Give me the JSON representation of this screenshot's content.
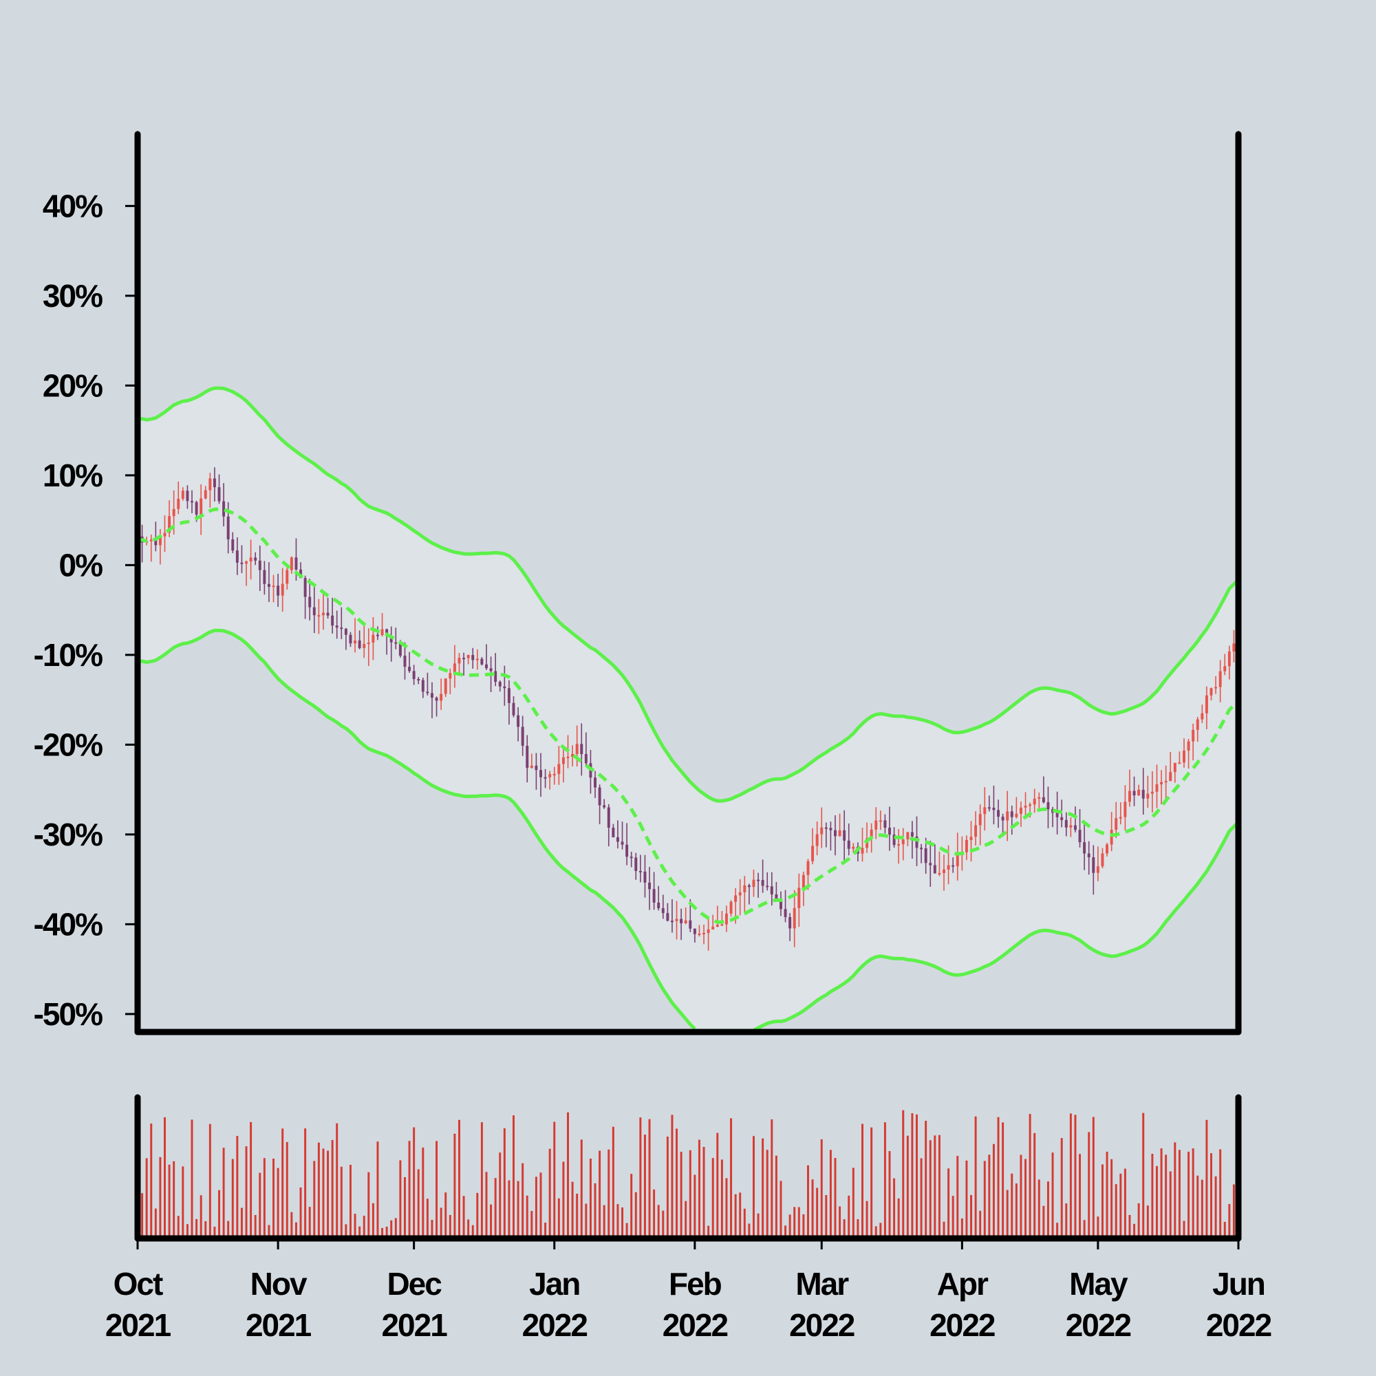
{
  "chart_data": {
    "type": "candlestick",
    "title": "",
    "xlabel": "",
    "ylabel": "",
    "y_unit": "%",
    "ylim": [
      -52,
      48
    ],
    "xlim": [
      "2021-10-01",
      "2022-06-01"
    ],
    "y_ticks": [
      "-50%",
      "-40%",
      "-30%",
      "-20%",
      "-10%",
      "0%",
      "10%",
      "20%",
      "30%",
      "40%"
    ],
    "y_tick_values": [
      -50,
      -40,
      -30,
      -20,
      -10,
      0,
      10,
      20,
      30,
      40
    ],
    "x_ticks": [
      {
        "month": "Oct",
        "year": "2021",
        "date": "2021-10-01"
      },
      {
        "month": "Nov",
        "year": "2021",
        "date": "2021-11-01"
      },
      {
        "month": "Dec",
        "year": "2021",
        "date": "2021-12-01"
      },
      {
        "month": "Jan",
        "year": "2022",
        "date": "2022-01-01"
      },
      {
        "month": "Feb",
        "year": "2022",
        "date": "2022-02-01"
      },
      {
        "month": "Mar",
        "year": "2022",
        "date": "2022-03-01"
      },
      {
        "month": "Apr",
        "year": "2022",
        "date": "2022-04-01"
      },
      {
        "month": "May",
        "year": "2022",
        "date": "2022-05-01"
      },
      {
        "month": "Jun",
        "year": "2022",
        "date": "2022-06-01"
      }
    ],
    "price_anchors": [
      [
        "2021-10-01",
        3
      ],
      [
        "2021-10-05",
        2
      ],
      [
        "2021-10-08",
        5
      ],
      [
        "2021-10-11",
        8
      ],
      [
        "2021-10-14",
        6
      ],
      [
        "2021-10-17",
        10
      ],
      [
        "2021-10-20",
        5
      ],
      [
        "2021-10-23",
        0
      ],
      [
        "2021-10-26",
        1
      ],
      [
        "2021-10-29",
        -2
      ],
      [
        "2021-11-01",
        -3
      ],
      [
        "2021-11-04",
        1
      ],
      [
        "2021-11-08",
        -5
      ],
      [
        "2021-11-12",
        -6
      ],
      [
        "2021-11-16",
        -8
      ],
      [
        "2021-11-20",
        -9
      ],
      [
        "2021-11-24",
        -7
      ],
      [
        "2021-11-28",
        -10
      ],
      [
        "2021-12-02",
        -13
      ],
      [
        "2021-12-06",
        -15
      ],
      [
        "2021-12-10",
        -11
      ],
      [
        "2021-12-14",
        -10
      ],
      [
        "2021-12-18",
        -12
      ],
      [
        "2021-12-22",
        -15
      ],
      [
        "2021-12-26",
        -22
      ],
      [
        "2021-12-30",
        -24
      ],
      [
        "2022-01-03",
        -22
      ],
      [
        "2022-01-06",
        -20
      ],
      [
        "2022-01-10",
        -25
      ],
      [
        "2022-01-14",
        -30
      ],
      [
        "2022-01-18",
        -33
      ],
      [
        "2022-01-22",
        -36
      ],
      [
        "2022-01-26",
        -40
      ],
      [
        "2022-01-30",
        -40
      ],
      [
        "2022-02-03",
        -41
      ],
      [
        "2022-02-07",
        -40
      ],
      [
        "2022-02-11",
        -36
      ],
      [
        "2022-02-15",
        -35
      ],
      [
        "2022-02-19",
        -37
      ],
      [
        "2022-02-22",
        -40
      ],
      [
        "2022-02-26",
        -33
      ],
      [
        "2022-03-01",
        -29
      ],
      [
        "2022-03-05",
        -30
      ],
      [
        "2022-03-09",
        -32
      ],
      [
        "2022-03-13",
        -28
      ],
      [
        "2022-03-17",
        -31
      ],
      [
        "2022-03-21",
        -30
      ],
      [
        "2022-03-25",
        -34
      ],
      [
        "2022-03-29",
        -34
      ],
      [
        "2022-04-02",
        -31
      ],
      [
        "2022-04-06",
        -27
      ],
      [
        "2022-04-10",
        -28
      ],
      [
        "2022-04-14",
        -27
      ],
      [
        "2022-04-18",
        -26
      ],
      [
        "2022-04-22",
        -28
      ],
      [
        "2022-04-26",
        -30
      ],
      [
        "2022-04-30",
        -34
      ],
      [
        "2022-05-04",
        -30
      ],
      [
        "2022-05-08",
        -25
      ],
      [
        "2022-05-12",
        -26
      ],
      [
        "2022-05-16",
        -24
      ],
      [
        "2022-05-20",
        -21
      ],
      [
        "2022-05-24",
        -16
      ],
      [
        "2022-05-28",
        -12
      ],
      [
        "2022-06-01",
        -8
      ]
    ],
    "series": [
      {
        "type": "candles",
        "colors": {
          "up": "#e8544c",
          "down": "#7b3f72",
          "wick_up": "#e8544c",
          "wick_down": "#7b3f72"
        }
      },
      {
        "type": "line",
        "style": "dashed",
        "color": "#5df04a"
      },
      {
        "type": "line",
        "style": "solid",
        "color": "#5df04a"
      },
      {
        "type": "line",
        "style": "solid",
        "color": "#5df04a"
      }
    ],
    "band_fill": "#dde3e6",
    "volume": {
      "color": "#d63a31",
      "has_axis_labels": false
    },
    "grid": false,
    "legend": "none"
  }
}
